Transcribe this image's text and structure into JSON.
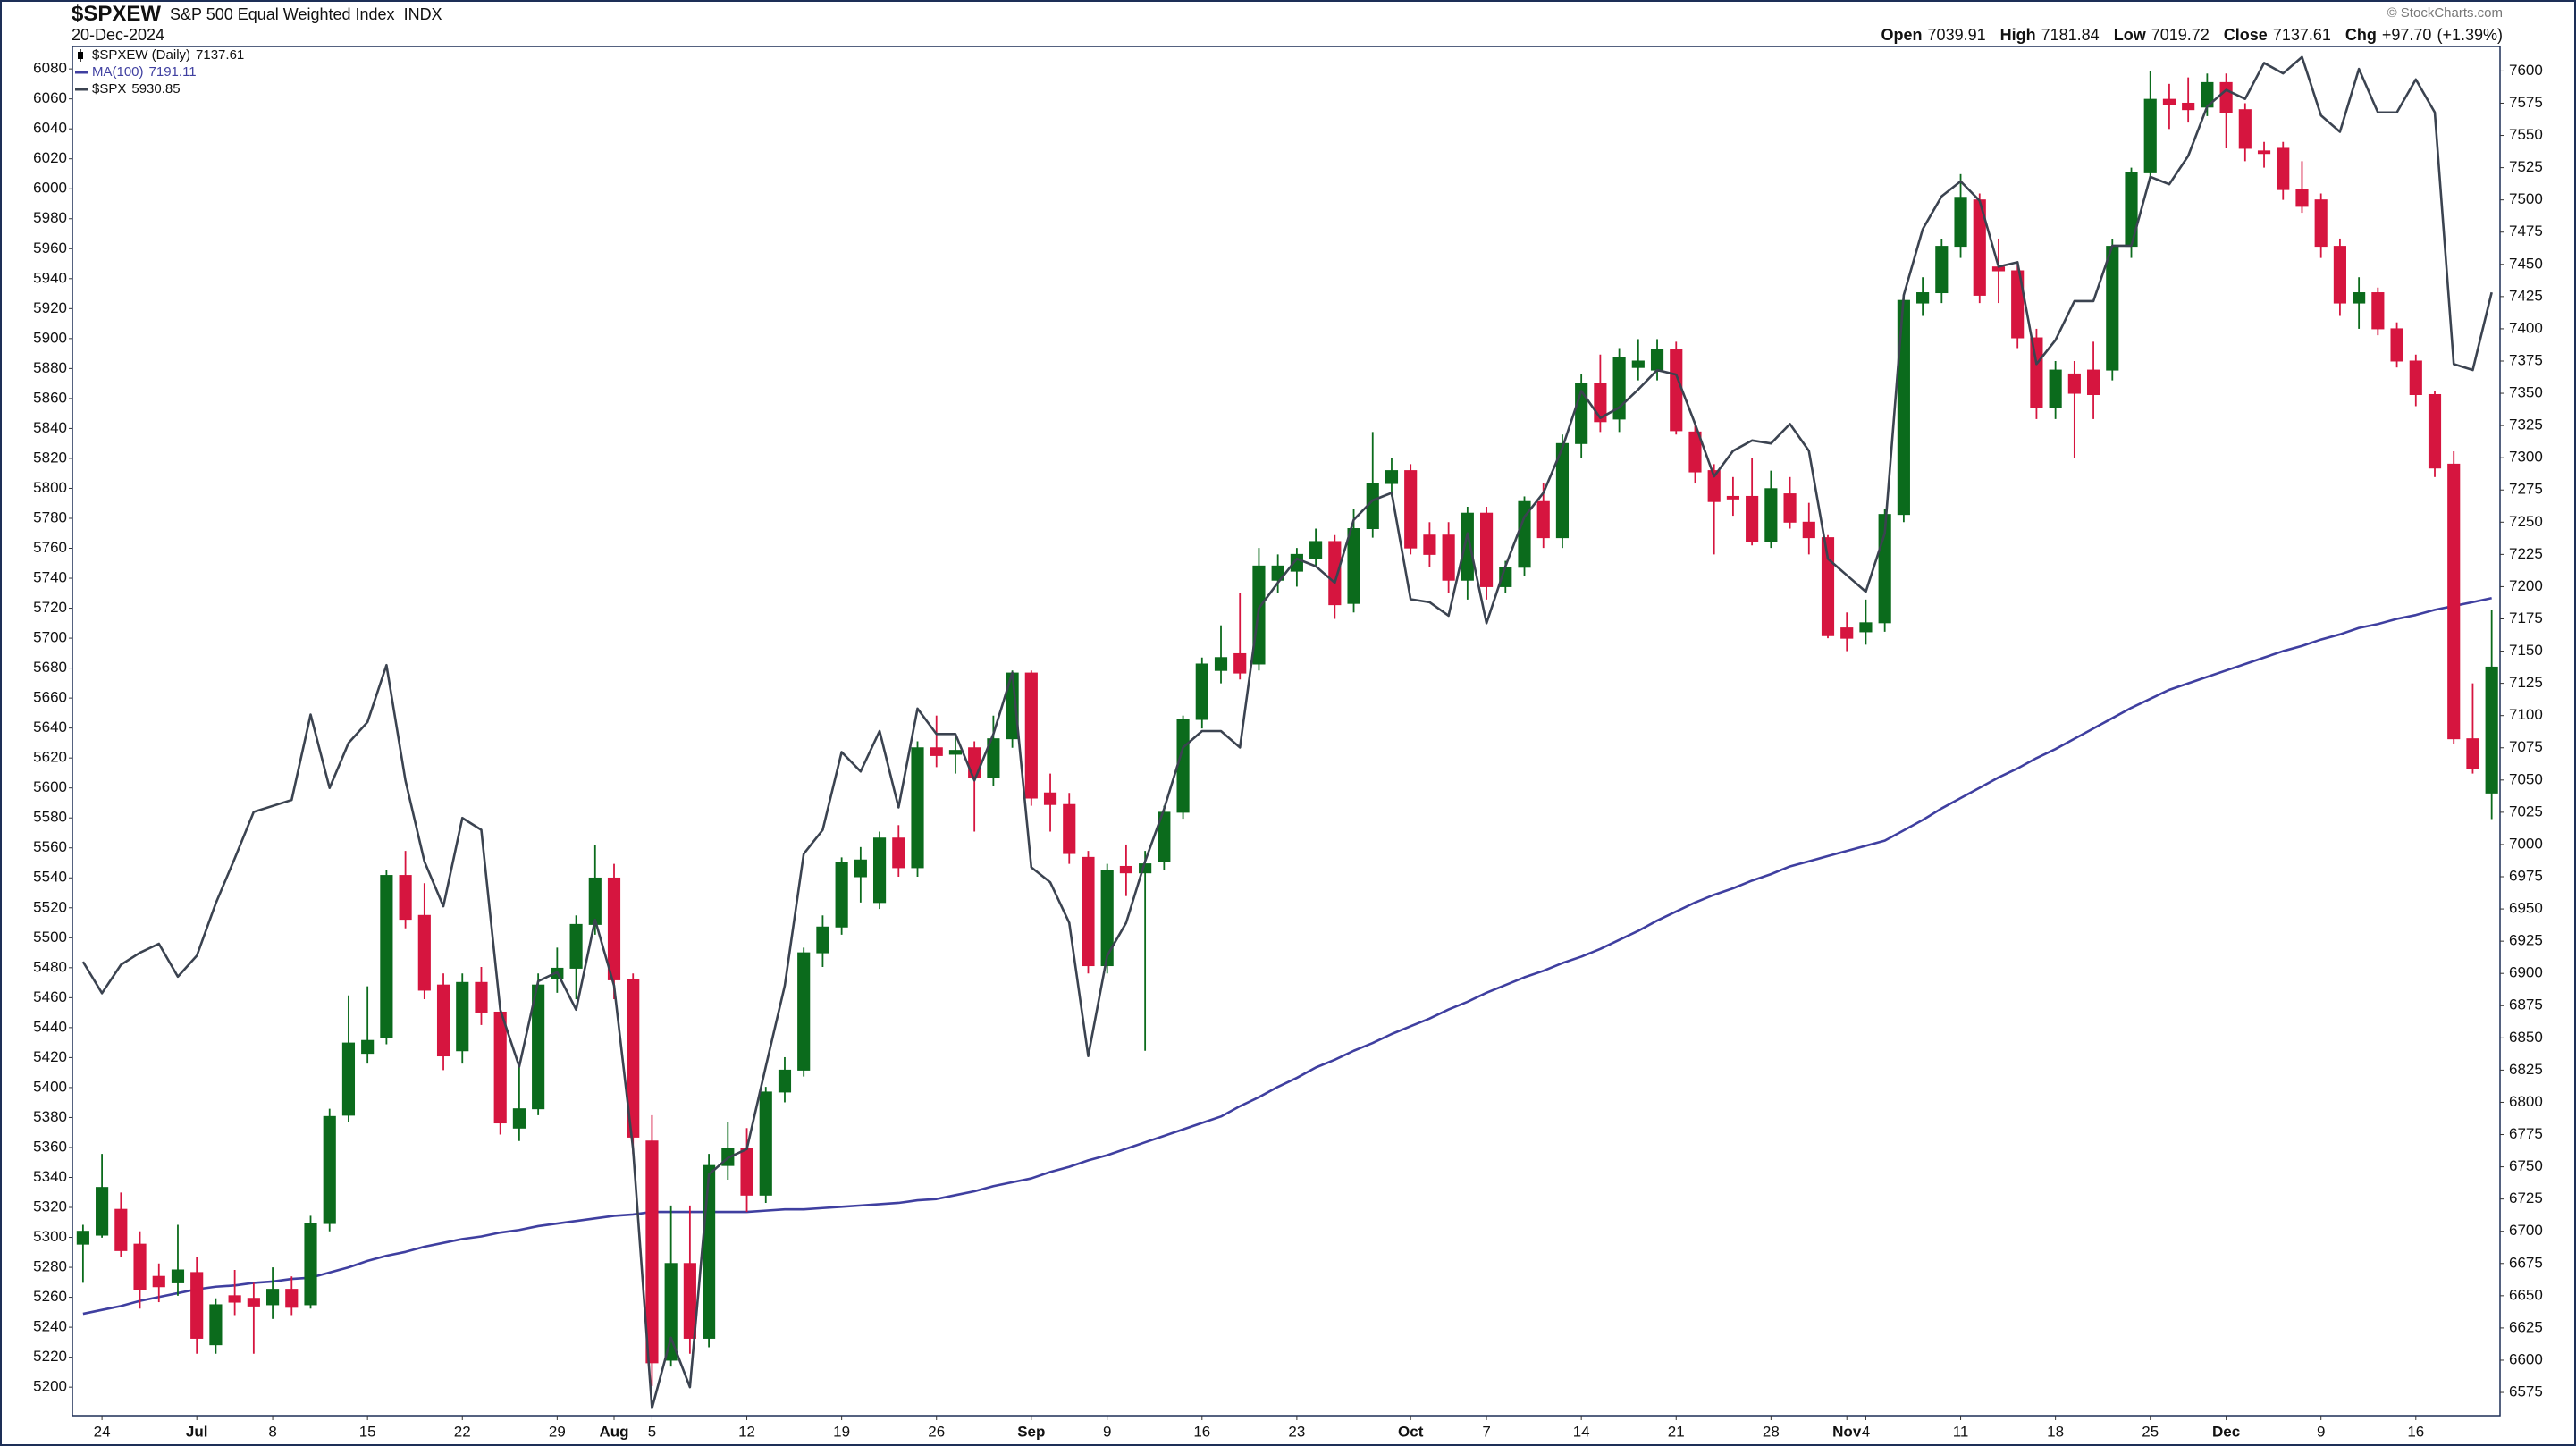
{
  "chart_data": {
    "type": "candlestick",
    "title": "$SPXEW",
    "subtitle": "S&P 500 Equal Weighted Index",
    "exchange": "INDX",
    "date": "20-Dec-2024",
    "credit": "© StockCharts.com",
    "quote": [
      {
        "label": "Open",
        "value": 7039.91
      },
      {
        "label": "High",
        "value": 7181.84
      },
      {
        "label": "Low",
        "value": 7019.72
      },
      {
        "label": "Close",
        "value": 7137.61
      },
      {
        "label": "Chg",
        "value": {
          "value": 97.7,
          "label": "+97.70"
        },
        "percent": {
          "value": 1.39,
          "label": "(+1.39%)"
        }
      }
    ],
    "categories": [
      null,
      "24",
      null,
      null,
      null,
      null,
      "Jul",
      null,
      null,
      null,
      "8",
      null,
      null,
      null,
      null,
      "15",
      null,
      null,
      null,
      null,
      "22",
      null,
      null,
      null,
      null,
      "29",
      null,
      null,
      "Aug",
      null,
      "5",
      null,
      null,
      null,
      null,
      "12",
      null,
      null,
      null,
      null,
      "19",
      null,
      null,
      null,
      null,
      "26",
      null,
      null,
      null,
      null,
      "Sep",
      null,
      null,
      null,
      "9",
      null,
      null,
      null,
      null,
      "16",
      null,
      null,
      null,
      null,
      "23",
      null,
      null,
      null,
      null,
      null,
      "Oct",
      null,
      null,
      null,
      "7",
      null,
      null,
      null,
      null,
      "14",
      null,
      null,
      null,
      null,
      "21",
      null,
      null,
      null,
      null,
      "28",
      null,
      null,
      null,
      "Nov",
      "4",
      null,
      null,
      null,
      null,
      "11",
      null,
      null,
      null,
      null,
      "18",
      null,
      null,
      null,
      null,
      "25",
      null,
      null,
      null,
      "Dec",
      null,
      null,
      null,
      null,
      "9",
      null,
      null,
      null,
      null,
      "16",
      null,
      null,
      null,
      null
    ],
    "series": [
      {
        "name": "$SPXEW (Daily)",
        "type": "candlestick",
        "axis": "y2",
        "up_color": "#0b6b1c",
        "down_color": "#d6153f",
        "open": [
          6690,
          6697,
          6717,
          6690,
          6665,
          6660,
          6668,
          6612,
          6650,
          6648,
          6643,
          6655,
          6643,
          6706,
          6790,
          6838,
          6850,
          6976,
          6945,
          6891,
          6840,
          6893,
          6870,
          6780,
          6795,
          6896,
          6904,
          6938,
          6974,
          6895,
          6770,
          6600,
          6675,
          6617,
          6751,
          6764,
          6728,
          6808,
          6825,
          6916,
          6936,
          6975,
          6955,
          7005,
          6982,
          7075,
          7070,
          7075,
          7052,
          7082,
          7133,
          7040,
          7031,
          6990,
          6906,
          6983,
          6978,
          6987,
          7025,
          7097,
          7135,
          7148,
          7140,
          7205,
          7212,
          7222,
          7235,
          7187,
          7245,
          7280,
          7290,
          7240,
          7240,
          7205,
          7257,
          7200,
          7215,
          7266,
          7238,
          7311,
          7358,
          7330,
          7370,
          7368,
          7384,
          7320,
          7290,
          7270,
          7270,
          7235,
          7272,
          7250,
          7238,
          7168,
          7165,
          7172,
          7256,
          7420,
          7428,
          7464,
          7500,
          7448,
          7445,
          7393,
          7339,
          7365,
          7368,
          7368,
          7464,
          7521,
          7578,
          7575,
          7572,
          7591,
          7570,
          7538,
          7540,
          7508,
          7500,
          7464,
          7420,
          7428,
          7400,
          7375,
          7349,
          7295,
          7082,
          7039.91
        ],
        "high": [
          6705,
          6760,
          6730,
          6700,
          6675,
          6705,
          6680,
          6648,
          6670,
          6660,
          6672,
          6665,
          6712,
          6795,
          6883,
          6890,
          6980,
          6995,
          6970,
          6900,
          6900,
          6905,
          6875,
          6830,
          6900,
          6920,
          6945,
          7000,
          6985,
          6900,
          6790,
          6720,
          6720,
          6760,
          6785,
          6780,
          6812,
          6835,
          6920,
          6945,
          6990,
          6998,
          7010,
          7015,
          7080,
          7100,
          7085,
          7080,
          7100,
          7135,
          7135,
          7055,
          7040,
          6995,
          6985,
          7000,
          6995,
          7030,
          7100,
          7145,
          7170,
          7195,
          7230,
          7225,
          7230,
          7245,
          7240,
          7260,
          7320,
          7300,
          7295,
          7250,
          7250,
          7262,
          7262,
          7220,
          7270,
          7280,
          7318,
          7365,
          7380,
          7385,
          7392,
          7392,
          7390,
          7325,
          7295,
          7285,
          7300,
          7290,
          7285,
          7265,
          7240,
          7180,
          7190,
          7260,
          7425,
          7440,
          7470,
          7520,
          7505,
          7470,
          7450,
          7400,
          7375,
          7375,
          7390,
          7470,
          7525,
          7600,
          7590,
          7595,
          7598,
          7598,
          7575,
          7545,
          7545,
          7530,
          7505,
          7470,
          7440,
          7432,
          7405,
          7380,
          7352,
          7305,
          7125,
          7181.84
        ],
        "low": [
          6660,
          6695,
          6680,
          6640,
          6645,
          6650,
          6605,
          6605,
          6635,
          6605,
          6632,
          6635,
          6640,
          6700,
          6785,
          6830,
          6845,
          6935,
          6880,
          6825,
          6830,
          6860,
          6775,
          6770,
          6790,
          6885,
          6880,
          6930,
          6880,
          6760,
          6580,
          6595,
          6605,
          6610,
          6740,
          6715,
          6722,
          6800,
          6820,
          6905,
          6930,
          6955,
          6950,
          6975,
          6975,
          7060,
          7055,
          7010,
          7045,
          7075,
          7030,
          7010,
          6985,
          6900,
          6900,
          6960,
          6840,
          6980,
          7020,
          7090,
          7125,
          7128,
          7135,
          7195,
          7200,
          7215,
          7175,
          7180,
          7238,
          7270,
          7225,
          7215,
          7195,
          7190,
          7190,
          7195,
          7208,
          7230,
          7230,
          7300,
          7320,
          7320,
          7360,
          7360,
          7318,
          7280,
          7225,
          7255,
          7232,
          7230,
          7245,
          7225,
          7160,
          7150,
          7155,
          7165,
          7250,
          7410,
          7420,
          7455,
          7420,
          7420,
          7385,
          7330,
          7330,
          7300,
          7330,
          7360,
          7455,
          7515,
          7555,
          7560,
          7565,
          7540,
          7530,
          7525,
          7500,
          7490,
          7455,
          7410,
          7400,
          7395,
          7370,
          7340,
          7285,
          7078,
          7055,
          7019.72
        ],
        "close": [
          6700,
          6734,
          6685,
          6655,
          6657,
          6670,
          6617,
          6643,
          6645,
          6642,
          6655,
          6641,
          6706,
          6789,
          6846,
          6848,
          6976,
          6942,
          6887,
          6836,
          6893,
          6870,
          6784,
          6795,
          6891,
          6904,
          6938,
          6974,
          6895,
          6773,
          6598,
          6675,
          6617,
          6751,
          6764,
          6728,
          6808,
          6825,
          6916,
          6936,
          6986,
          6988,
          7005,
          6982,
          7075,
          7069,
          7073,
          7052,
          7082,
          7133,
          7036,
          7031,
          6993,
          6906,
          6980,
          6978,
          6985,
          7025,
          7097,
          7140,
          7145,
          7133,
          7216,
          7216,
          7225,
          7235,
          7186,
          7245,
          7280,
          7290,
          7230,
          7225,
          7205,
          7257,
          7200,
          7215,
          7266,
          7238,
          7311,
          7358,
          7328,
          7378,
          7375,
          7384,
          7321,
          7289,
          7266,
          7268,
          7235,
          7276,
          7250,
          7238,
          7162,
          7160,
          7172,
          7256,
          7422,
          7428,
          7464,
          7502,
          7426,
          7445,
          7393,
          7339,
          7368,
          7350,
          7349,
          7464,
          7521,
          7578,
          7574,
          7570,
          7591,
          7568,
          7540,
          7536,
          7508,
          7495,
          7464,
          7420,
          7428,
          7400,
          7375,
          7349,
          7292,
          7082,
          7059,
          7137.61
        ]
      },
      {
        "name": "MA(100)",
        "type": "line",
        "axis": "y2",
        "color": "#3f3fa0",
        "values": [
          6636,
          6639,
          6642,
          6646,
          6649,
          6652,
          6655,
          6657,
          6658,
          6660,
          6661,
          6663,
          6664,
          6668,
          6672,
          6677,
          6681,
          6684,
          6688,
          6691,
          6694,
          6696,
          6699,
          6701,
          6704,
          6706,
          6708,
          6710,
          6712,
          6713,
          6715,
          6715,
          6715,
          6715,
          6715,
          6715,
          6716,
          6717,
          6717,
          6718,
          6719,
          6720,
          6721,
          6722,
          6724,
          6725,
          6728,
          6731,
          6735,
          6738,
          6741,
          6746,
          6750,
          6755,
          6759,
          6764,
          6769,
          6774,
          6779,
          6784,
          6789,
          6797,
          6804,
          6812,
          6819,
          6827,
          6833,
          6840,
          6846,
          6853,
          6859,
          6865,
          6872,
          6878,
          6885,
          6891,
          6897,
          6902,
          6908,
          6913,
          6919,
          6926,
          6933,
          6941,
          6948,
          6955,
          6961,
          6966,
          6972,
          6977,
          6983,
          6987,
          6991,
          6995,
          6999,
          7003,
          7011,
          7019,
          7028,
          7036,
          7044,
          7052,
          7059,
          7067,
          7074,
          7082,
          7090,
          7098,
          7106,
          7113,
          7120,
          7125,
          7130,
          7135,
          7140,
          7145,
          7150,
          7154,
          7159,
          7163,
          7168,
          7171,
          7175,
          7178,
          7182,
          7185,
          7188,
          7191.11
        ]
      },
      {
        "name": "$SPX",
        "type": "line",
        "axis": "y",
        "color": "#3b4350",
        "values": [
          5484,
          5463,
          5482,
          5490,
          5496,
          5474,
          5488,
          5523,
          5553,
          5584,
          5588,
          5592,
          5649,
          5600,
          5630,
          5644,
          5682,
          5605,
          5551,
          5521,
          5580,
          5572,
          5452,
          5414,
          5471,
          5477,
          5452,
          5512,
          5468,
          5359,
          5186,
          5233,
          5200,
          5342,
          5353,
          5359,
          5414,
          5468,
          5556,
          5572,
          5624,
          5611,
          5638,
          5587,
          5653,
          5636,
          5636,
          5605,
          5636,
          5677,
          5547,
          5537,
          5510,
          5421,
          5488,
          5510,
          5551,
          5586,
          5627,
          5638,
          5638,
          5627,
          5720,
          5737,
          5753,
          5748,
          5737,
          5779,
          5792,
          5797,
          5726,
          5724,
          5715,
          5770,
          5710,
          5748,
          5781,
          5797,
          5827,
          5865,
          5847,
          5854,
          5866,
          5879,
          5876,
          5843,
          5808,
          5825,
          5832,
          5830,
          5843,
          5825,
          5753,
          5742,
          5731,
          5770,
          5929,
          5973,
          5995,
          6005,
          5992,
          5948,
          5951,
          5883,
          5899,
          5925,
          5925,
          5962,
          5962,
          6008,
          6003,
          6022,
          6055,
          6066,
          6060,
          6084,
          6077,
          6088,
          6049,
          6038,
          6080,
          6051,
          6051,
          6073,
          6051,
          5883,
          5879,
          5930.85
        ]
      }
    ],
    "ylim": [
      5181,
      6095
    ],
    "yticks": [
      5200,
      5220,
      5240,
      5260,
      5280,
      5300,
      5320,
      5340,
      5360,
      5380,
      5400,
      5420,
      5440,
      5460,
      5480,
      5500,
      5520,
      5540,
      5560,
      5580,
      5600,
      5620,
      5640,
      5660,
      5680,
      5700,
      5720,
      5740,
      5760,
      5780,
      5800,
      5820,
      5840,
      5860,
      5880,
      5900,
      5920,
      5940,
      5960,
      5980,
      6000,
      6020,
      6040,
      6060,
      6080
    ],
    "y2lim": [
      6557,
      7619
    ],
    "y2ticks": [
      6575,
      6600,
      6625,
      6650,
      6675,
      6700,
      6725,
      6750,
      6775,
      6800,
      6825,
      6850,
      6875,
      6900,
      6925,
      6950,
      6975,
      7000,
      7025,
      7050,
      7075,
      7100,
      7125,
      7150,
      7175,
      7200,
      7225,
      7250,
      7275,
      7300,
      7325,
      7350,
      7375,
      7400,
      7425,
      7450,
      7475,
      7500,
      7525,
      7550,
      7575,
      7600
    ],
    "grid": false
  }
}
